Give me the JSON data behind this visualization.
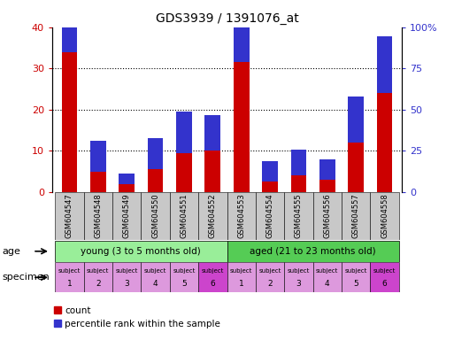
{
  "title": "GDS3939 / 1391076_at",
  "categories": [
    "GSM604547",
    "GSM604548",
    "GSM604549",
    "GSM604550",
    "GSM604551",
    "GSM604552",
    "GSM604553",
    "GSM604554",
    "GSM604555",
    "GSM604556",
    "GSM604557",
    "GSM604558"
  ],
  "count_values": [
    34,
    5,
    2,
    5.5,
    9.5,
    10,
    31.5,
    2.5,
    4,
    3,
    12,
    24
  ],
  "percentile_values": [
    22,
    7.5,
    2.5,
    7.5,
    10,
    8.75,
    22,
    5,
    6.25,
    5,
    11.25,
    13.75
  ],
  "ylim_left": [
    0,
    40
  ],
  "ylim_right": [
    0,
    100
  ],
  "yticks_left": [
    0,
    10,
    20,
    30,
    40
  ],
  "yticks_right": [
    0,
    25,
    50,
    75,
    100
  ],
  "ytick_labels_right": [
    "0",
    "25",
    "50",
    "75",
    "100%"
  ],
  "bar_color_count": "#cc0000",
  "bar_color_percentile": "#3333cc",
  "bar_width": 0.55,
  "age_groups": [
    {
      "label": "young (3 to 5 months old)",
      "start": 0,
      "end": 6,
      "color": "#99ee99"
    },
    {
      "label": "aged (21 to 23 months old)",
      "start": 6,
      "end": 12,
      "color": "#55cc55"
    }
  ],
  "specimen_numbers": [
    "1",
    "2",
    "3",
    "4",
    "5",
    "6",
    "1",
    "2",
    "3",
    "4",
    "5",
    "6"
  ],
  "specimen_colors": [
    "#dd99dd",
    "#dd99dd",
    "#dd99dd",
    "#dd99dd",
    "#dd99dd",
    "#cc44cc",
    "#dd99dd",
    "#dd99dd",
    "#dd99dd",
    "#dd99dd",
    "#dd99dd",
    "#cc44cc"
  ],
  "tick_label_bg": "#c8c8c8",
  "legend_count_label": "count",
  "legend_percentile_label": "percentile rank within the sample",
  "age_label": "age",
  "specimen_label": "specimen",
  "grid_lines": [
    10,
    20,
    30
  ],
  "fig_width": 5.13,
  "fig_height": 3.84,
  "fig_dpi": 100
}
